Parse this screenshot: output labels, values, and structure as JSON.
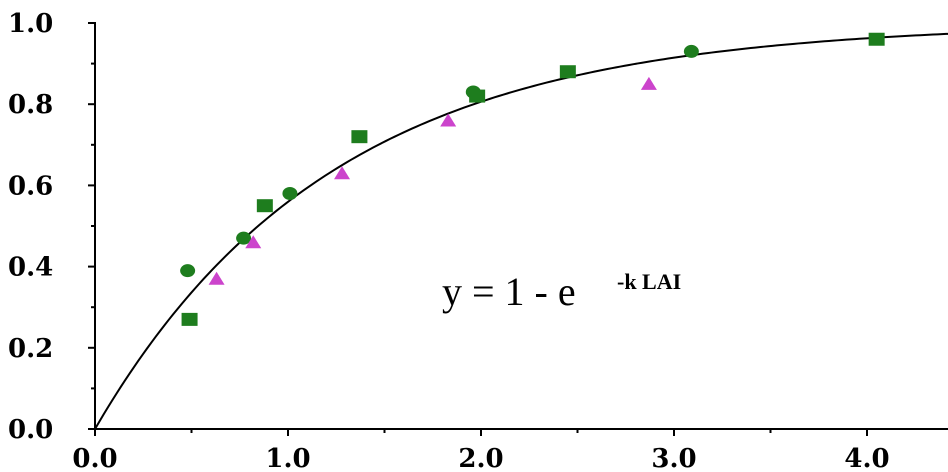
{
  "chart_data": {
    "type": "scatter",
    "title": "",
    "xlabel": "",
    "ylabel": "",
    "xlim": [
      0.0,
      4.5
    ],
    "ylim": [
      0.0,
      1.0
    ],
    "x_ticks": [
      "0.0",
      "1.0",
      "2.0",
      "3.0",
      "4.0"
    ],
    "y_ticks": [
      "0.0",
      "0.2",
      "0.4",
      "0.6",
      "0.8",
      "1.0"
    ],
    "grid": false,
    "legend": "none",
    "series": [
      {
        "marker": "circle",
        "color": "#1e7d1e",
        "points": [
          {
            "x": 0.48,
            "y": 0.39
          },
          {
            "x": 0.77,
            "y": 0.47
          },
          {
            "x": 1.01,
            "y": 0.58
          },
          {
            "x": 1.96,
            "y": 0.83
          },
          {
            "x": 3.09,
            "y": 0.93
          }
        ]
      },
      {
        "marker": "square",
        "color": "#1e7d1e",
        "points": [
          {
            "x": 0.49,
            "y": 0.27
          },
          {
            "x": 0.88,
            "y": 0.55
          },
          {
            "x": 1.37,
            "y": 0.72
          },
          {
            "x": 1.98,
            "y": 0.82
          },
          {
            "x": 2.45,
            "y": 0.88
          },
          {
            "x": 4.05,
            "y": 0.96
          }
        ]
      },
      {
        "marker": "triangle",
        "color": "#cc44cc",
        "points": [
          {
            "x": 0.63,
            "y": 0.37
          },
          {
            "x": 0.82,
            "y": 0.46
          },
          {
            "x": 1.28,
            "y": 0.63
          },
          {
            "x": 1.83,
            "y": 0.76
          },
          {
            "x": 2.87,
            "y": 0.85
          }
        ]
      }
    ],
    "fit_curve": {
      "form": "y = 1 - exp(-k * x)",
      "k": 0.82,
      "color": "#000000"
    },
    "annotation": {
      "text_main": "y = 1 - e",
      "text_superscript": "-k LAI"
    }
  }
}
